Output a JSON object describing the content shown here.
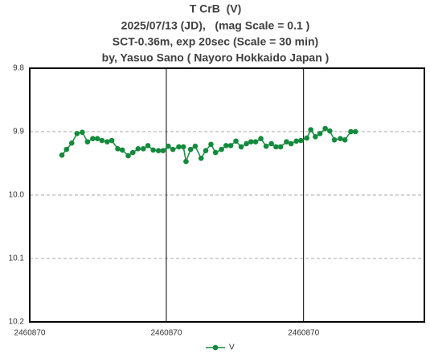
{
  "chart_data": {
    "type": "line",
    "title": "T CrB  (V)",
    "subtitle": [
      "2025/07/13 (JD),   (mag Scale = 0.1 )",
      "SCT-0.36m, exp 20sec (Scale = 30 min)",
      "by, Yasuo Sano ( Nayoro Hokkaido Japan )"
    ],
    "x": [
      2460870.0049,
      2460870.0056,
      2460870.0064,
      2460870.0072,
      2460870.008,
      2460870.0088,
      2460870.0096,
      2460870.0103,
      2460870.011,
      2460870.0118,
      2460870.0125,
      2460870.0134,
      2460870.0141,
      2460870.015,
      2460870.0157,
      2460870.0165,
      2460870.0173,
      2460870.018,
      2460870.0188,
      2460870.0196,
      2460870.0203,
      2460870.0211,
      2460870.0218,
      2460870.0227,
      2460870.0234,
      2460870.0238,
      2460870.0245,
      2460870.0252,
      2460870.0261,
      2460870.0268,
      2460870.0276,
      2460870.0283,
      2460870.0292,
      2460870.0299,
      2460870.0306,
      2460870.0314,
      2460870.0322,
      2460870.033,
      2460870.0337,
      2460870.0344,
      2460870.0352,
      2460870.036,
      2460870.0368,
      2460870.0375,
      2460870.0382,
      2460870.0391,
      2460870.0398,
      2460870.0406,
      2460870.0413,
      2460870.0422,
      2460870.0428,
      2460870.0435,
      2460870.0442,
      2460870.045,
      2460870.0457,
      2460870.0464,
      2460870.0473,
      2460870.048,
      2460870.0489,
      2460870.0496
    ],
    "series": [
      {
        "name": "V",
        "color": "#138a3c",
        "values": [
          9.937,
          9.928,
          9.918,
          9.903,
          9.901,
          9.916,
          9.911,
          9.911,
          9.914,
          9.916,
          9.914,
          9.927,
          9.929,
          9.938,
          9.933,
          9.927,
          9.927,
          9.922,
          9.929,
          9.93,
          9.93,
          9.923,
          9.928,
          9.924,
          9.924,
          9.947,
          9.928,
          9.923,
          9.942,
          9.93,
          9.92,
          9.933,
          9.928,
          9.922,
          9.922,
          9.915,
          9.924,
          9.919,
          9.916,
          9.916,
          9.911,
          9.923,
          9.919,
          9.924,
          9.924,
          9.916,
          9.919,
          9.915,
          9.914,
          9.91,
          9.897,
          9.908,
          9.903,
          9.895,
          9.899,
          9.913,
          9.911,
          9.913,
          9.9,
          9.9
        ]
      }
    ],
    "xlim": [
      2460870.0,
      2460870.0601
    ],
    "xticks": [
      {
        "value": 2460870.0,
        "label": "2460870"
      },
      {
        "value": 2460870.0208,
        "label": "2460870"
      },
      {
        "value": 2460870.0417,
        "label": "2460870"
      }
    ],
    "ylim": [
      10.2,
      9.8
    ],
    "yticks": [
      9.8,
      9.9,
      {
        "value": 10.0,
        "label": "10.0"
      },
      10.1,
      10.2
    ],
    "grid": true,
    "legend": "bottom"
  }
}
